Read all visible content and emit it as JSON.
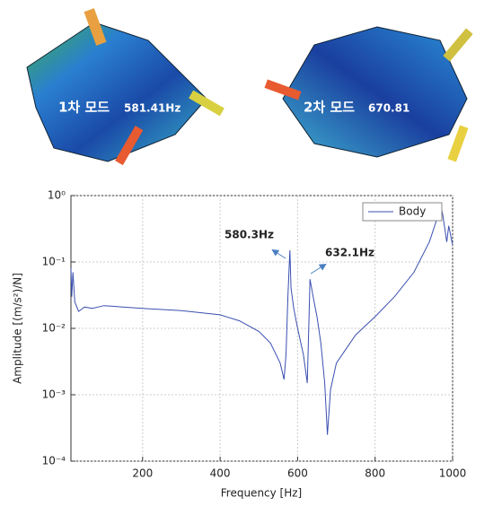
{
  "mode_images": [
    {
      "label": "1차 모드",
      "frequency": "581.41Hz"
    },
    {
      "label": "2차 모드",
      "frequency": "670.81"
    }
  ],
  "chart_data": {
    "type": "line",
    "x_label": "Frequency [Hz]",
    "y_label": "Amplitude [(m/s²)/N]",
    "x": [
      15,
      17,
      20,
      25,
      35,
      50,
      70,
      100,
      150,
      200,
      300,
      400,
      450,
      500,
      530,
      555,
      565,
      570,
      575,
      580,
      583,
      590,
      600,
      615,
      625,
      630,
      632,
      640,
      650,
      660,
      670,
      677,
      685,
      700,
      750,
      800,
      850,
      900,
      940,
      960,
      970,
      975,
      985,
      990,
      1000
    ],
    "series": [
      {
        "name": "Body",
        "color": "#3a4fb0",
        "values": [
          0.08,
          0.03,
          0.07,
          0.025,
          0.018,
          0.021,
          0.02,
          0.022,
          0.021,
          0.02,
          0.0185,
          0.016,
          0.013,
          0.009,
          0.006,
          0.003,
          0.0017,
          0.004,
          0.03,
          0.15,
          0.04,
          0.02,
          0.01,
          0.004,
          0.0015,
          0.02,
          0.055,
          0.03,
          0.015,
          0.006,
          0.0015,
          0.00025,
          0.0012,
          0.003,
          0.008,
          0.015,
          0.03,
          0.07,
          0.2,
          0.45,
          0.7,
          0.5,
          0.2,
          0.35,
          0.18
        ]
      }
    ],
    "xlim": [
      15,
      1000
    ],
    "xticks": [
      200,
      400,
      600,
      800,
      1000
    ],
    "ylim": [
      0.0001,
      1
    ],
    "log_y": true,
    "yticks": [
      {
        "value": 0.0001,
        "label": "10⁻⁴"
      },
      {
        "value": 0.001,
        "label": "10⁻³"
      },
      {
        "value": 0.01,
        "label": "10⁻²"
      },
      {
        "value": 0.1,
        "label": "10⁻¹"
      },
      {
        "value": 1,
        "label": "10⁰"
      }
    ],
    "grid": true,
    "legend": "upper right",
    "annotations": [
      "580.3Hz",
      "632.1Hz"
    ]
  }
}
